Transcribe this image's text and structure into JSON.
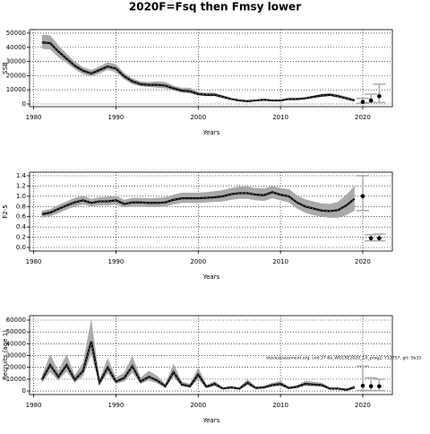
{
  "chart_data": [
    {
      "type": "line",
      "title": "2020F=Fsq then Fmsy lower",
      "ylabel": "SSB",
      "xlabel": "Years",
      "xlim": [
        1979.5,
        2023.6
      ],
      "xticks": [
        1980,
        1990,
        2000,
        2010,
        2020
      ],
      "ylim": [
        -1900,
        52500
      ],
      "yticks": [
        0,
        10000,
        20000,
        30000,
        40000,
        50000
      ],
      "grid": true,
      "x": [
        1981,
        1982,
        1983,
        1984,
        1985,
        1986,
        1987,
        1988,
        1989,
        1990,
        1991,
        1992,
        1993,
        1994,
        1995,
        1996,
        1997,
        1998,
        1999,
        2000,
        2001,
        2002,
        2003,
        2004,
        2005,
        2006,
        2007,
        2008,
        2009,
        2010,
        2011,
        2012,
        2013,
        2014,
        2015,
        2016,
        2017,
        2018,
        2019
      ],
      "values": [
        43500,
        43000,
        37000,
        32000,
        27000,
        23500,
        21500,
        24000,
        26500,
        25000,
        19500,
        16000,
        14000,
        13500,
        13500,
        13000,
        11000,
        9500,
        9000,
        7000,
        6500,
        6500,
        5000,
        3500,
        2500,
        2000,
        2500,
        3000,
        2500,
        2500,
        3500,
        3500,
        4000,
        5000,
        6000,
        6500,
        5500,
        4000,
        2500
      ],
      "lower": [
        39000,
        38500,
        33000,
        29000,
        24500,
        21000,
        19500,
        21500,
        24000,
        22500,
        17500,
        14000,
        12500,
        12000,
        11500,
        11000,
        9500,
        8000,
        7500,
        6000,
        5500,
        5500,
        4200,
        3000,
        2000,
        1600,
        2000,
        2500,
        2000,
        2000,
        3000,
        3000,
        3400,
        4200,
        5000,
        5500,
        4500,
        3200,
        1800
      ],
      "upper": [
        49000,
        48500,
        41500,
        35500,
        30000,
        26000,
        24000,
        26500,
        29500,
        28000,
        22000,
        18000,
        16000,
        15500,
        16000,
        15500,
        13000,
        11500,
        11500,
        8500,
        8000,
        8000,
        6200,
        4300,
        3200,
        2600,
        3100,
        3700,
        3100,
        3100,
        4200,
        4200,
        4800,
        6000,
        7200,
        7800,
        6800,
        5200,
        3600
      ],
      "projection": {
        "x": [
          2020,
          2021,
          2022
        ],
        "values": [
          1500,
          2500,
          5500
        ],
        "lower": [
          500,
          1000,
          1000
        ],
        "upper": [
          4000,
          7000,
          14000
        ]
      }
    },
    {
      "type": "line",
      "ylabel": "F2-5",
      "xlabel": "Years",
      "xlim": [
        1979.5,
        2023.6
      ],
      "xticks": [
        1980,
        1990,
        2000,
        2010,
        2020
      ],
      "ylim": [
        -0.07,
        1.47
      ],
      "yticks": [
        {
          "value": 0,
          "label": "0.0"
        },
        0.2,
        0.4,
        0.6,
        0.8,
        {
          "value": 1,
          "label": "1.0"
        },
        1.2,
        1.4
      ],
      "grid": true,
      "x": [
        1981,
        1982,
        1983,
        1984,
        1985,
        1986,
        1987,
        1988,
        1989,
        1990,
        1991,
        1992,
        1993,
        1994,
        1995,
        1996,
        1997,
        1998,
        1999,
        2000,
        2001,
        2002,
        2003,
        2004,
        2005,
        2006,
        2007,
        2008,
        2009,
        2010,
        2011,
        2012,
        2013,
        2014,
        2015,
        2016,
        2017,
        2018,
        2019
      ],
      "values": [
        0.65,
        0.68,
        0.75,
        0.82,
        0.88,
        0.92,
        0.87,
        0.9,
        0.9,
        0.92,
        0.85,
        0.88,
        0.88,
        0.87,
        0.87,
        0.88,
        0.93,
        0.96,
        0.96,
        0.96,
        0.97,
        0.98,
        1.0,
        1.04,
        1.06,
        1.06,
        1.03,
        1.02,
        1.08,
        1.03,
        1.0,
        0.88,
        0.8,
        0.76,
        0.72,
        0.71,
        0.73,
        0.82,
        0.95
      ],
      "lower": [
        0.58,
        0.61,
        0.67,
        0.74,
        0.8,
        0.84,
        0.8,
        0.82,
        0.82,
        0.84,
        0.78,
        0.8,
        0.8,
        0.79,
        0.79,
        0.8,
        0.84,
        0.87,
        0.87,
        0.87,
        0.88,
        0.89,
        0.9,
        0.93,
        0.95,
        0.95,
        0.92,
        0.91,
        0.96,
        0.92,
        0.88,
        0.76,
        0.68,
        0.63,
        0.6,
        0.58,
        0.58,
        0.63,
        0.72
      ],
      "upper": [
        0.72,
        0.75,
        0.83,
        0.9,
        0.97,
        1.01,
        0.95,
        0.98,
        0.99,
        1.01,
        0.93,
        0.97,
        0.97,
        0.96,
        0.97,
        0.98,
        1.03,
        1.07,
        1.07,
        1.07,
        1.08,
        1.1,
        1.12,
        1.16,
        1.19,
        1.19,
        1.16,
        1.15,
        1.2,
        1.16,
        1.14,
        1.02,
        0.94,
        0.9,
        0.86,
        0.85,
        0.89,
        1.03,
        1.2
      ],
      "projection": {
        "x": [
          2020,
          2021,
          2022
        ],
        "values": [
          1.0,
          0.18,
          0.18
        ],
        "lower": [
          0.72,
          0.13,
          0.13
        ],
        "upper": [
          1.4,
          0.25,
          0.26
        ]
      }
    },
    {
      "type": "line",
      "ylabel": "Recruits (age 1)",
      "xlabel": "Years",
      "annotation": "stockassessment.org, cod.27.6a_WGCSE2020_1A_prog2, Y12757, git: 5b33",
      "xlim": [
        1979.5,
        2023.6
      ],
      "xticks": [
        1980,
        1990,
        2000,
        2010,
        2020
      ],
      "ylim": [
        -3000,
        63800
      ],
      "yticks": [
        0,
        10000,
        20000,
        30000,
        40000,
        50000,
        60000
      ],
      "grid": true,
      "x": [
        1981,
        1982,
        1983,
        1984,
        1985,
        1986,
        1987,
        1988,
        1989,
        1990,
        1991,
        1992,
        1993,
        1994,
        1995,
        1996,
        1997,
        1998,
        1999,
        2000,
        2001,
        2002,
        2003,
        2004,
        2005,
        2006,
        2007,
        2008,
        2009,
        2010,
        2011,
        2012,
        2013,
        2014,
        2015,
        2016,
        2017,
        2018,
        2019
      ],
      "values": [
        9500,
        22000,
        12000,
        22000,
        9500,
        17000,
        42000,
        7000,
        20000,
        8000,
        11000,
        21000,
        8000,
        12000,
        9000,
        4000,
        16000,
        5500,
        4000,
        14000,
        3500,
        6000,
        2000,
        3000,
        2000,
        7000,
        2500,
        3000,
        5000,
        6000,
        2500,
        3500,
        6000,
        5500,
        5000,
        2000,
        2000,
        1000,
        3000
      ],
      "lower": [
        7000,
        16000,
        9000,
        16500,
        7000,
        12500,
        31000,
        5000,
        15000,
        6000,
        8000,
        15500,
        6000,
        9000,
        6500,
        2800,
        12000,
        4000,
        2800,
        10000,
        2500,
        4300,
        1400,
        2100,
        1400,
        5000,
        1800,
        2100,
        3600,
        4300,
        1800,
        2500,
        4300,
        4000,
        3600,
        1400,
        1400,
        700,
        1800
      ],
      "upper": [
        13000,
        31000,
        17000,
        31000,
        13500,
        24000,
        61000,
        10000,
        28000,
        11500,
        15500,
        29500,
        11500,
        17000,
        13000,
        6000,
        23000,
        8000,
        6000,
        20000,
        5200,
        8500,
        3000,
        4300,
        2900,
        10000,
        3600,
        4300,
        7000,
        8500,
        3600,
        5000,
        8500,
        7800,
        7000,
        2900,
        3000,
        1500,
        5000
      ],
      "projection": {
        "x": [
          2020,
          2021,
          2022
        ],
        "values": [
          4500,
          4000,
          4000
        ],
        "lower": [
          500,
          300,
          300
        ],
        "upper": [
          21000,
          11000,
          10000
        ]
      }
    }
  ]
}
